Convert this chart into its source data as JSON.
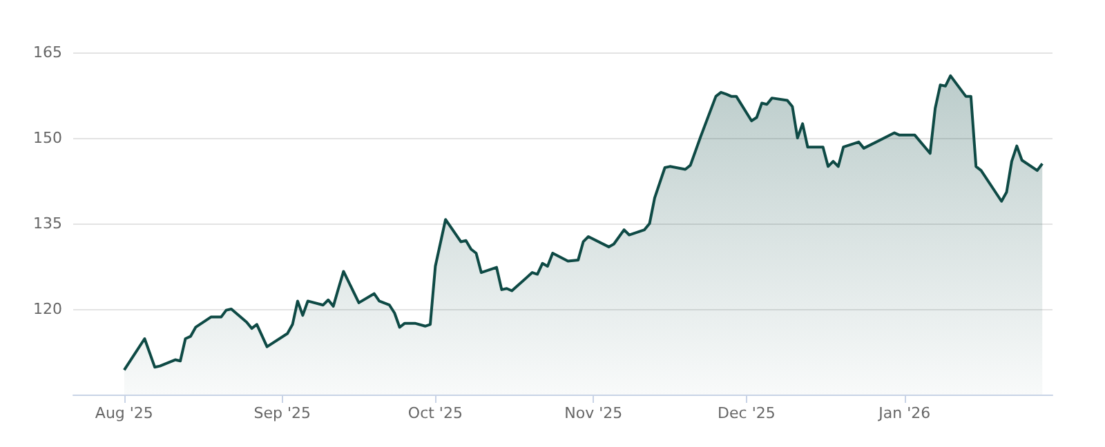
{
  "chart_data": {
    "type": "area",
    "color": "#0e4a45",
    "x": [
      "2025-08-01",
      "2025-08-05",
      "2025-08-07",
      "2025-08-08",
      "2025-08-11",
      "2025-08-12",
      "2025-08-13",
      "2025-08-14",
      "2025-08-15",
      "2025-08-18",
      "2025-08-20",
      "2025-08-21",
      "2025-08-22",
      "2025-08-25",
      "2025-08-26",
      "2025-08-27",
      "2025-08-29",
      "2025-09-02",
      "2025-09-03",
      "2025-09-04",
      "2025-09-05",
      "2025-09-06",
      "2025-09-09",
      "2025-09-10",
      "2025-09-11",
      "2025-09-12",
      "2025-09-13",
      "2025-09-16",
      "2025-09-19",
      "2025-09-20",
      "2025-09-22",
      "2025-09-23",
      "2025-09-24",
      "2025-09-25",
      "2025-09-27",
      "2025-09-29",
      "2025-09-30",
      "2025-10-01",
      "2025-10-03",
      "2025-10-06",
      "2025-10-07",
      "2025-10-08",
      "2025-10-09",
      "2025-10-10",
      "2025-10-13",
      "2025-10-14",
      "2025-10-15",
      "2025-10-16",
      "2025-10-20",
      "2025-10-21",
      "2025-10-22",
      "2025-10-23",
      "2025-10-24",
      "2025-10-27",
      "2025-10-29",
      "2025-10-30",
      "2025-10-31",
      "2025-11-04",
      "2025-11-05",
      "2025-11-07",
      "2025-11-08",
      "2025-11-11",
      "2025-11-12",
      "2025-11-13",
      "2025-11-15",
      "2025-11-16",
      "2025-11-19",
      "2025-11-20",
      "2025-11-22",
      "2025-11-25",
      "2025-11-26",
      "2025-11-27",
      "2025-11-28",
      "2025-11-29",
      "2025-12-02",
      "2025-12-03",
      "2025-12-04",
      "2025-12-05",
      "2025-12-06",
      "2025-12-09",
      "2025-12-10",
      "2025-12-11",
      "2025-12-12",
      "2025-12-13",
      "2025-12-16",
      "2025-12-17",
      "2025-12-18",
      "2025-12-19",
      "2025-12-20",
      "2025-12-23",
      "2025-12-24",
      "2025-12-30",
      "2025-12-31",
      "2026-01-03",
      "2026-01-06",
      "2026-01-07",
      "2026-01-08",
      "2026-01-09",
      "2026-01-10",
      "2026-01-13",
      "2026-01-14",
      "2026-01-15",
      "2026-01-16",
      "2026-01-20",
      "2026-01-21",
      "2026-01-22",
      "2026-01-23",
      "2026-01-24",
      "2026-01-27",
      "2026-01-28"
    ],
    "values": [
      109.3,
      114.8,
      109.8,
      110,
      111.1,
      110.9,
      114.8,
      115.2,
      116.8,
      118.6,
      118.6,
      119.8,
      120,
      117.7,
      116.6,
      117.3,
      113.4,
      115.7,
      117.3,
      121.4,
      118.9,
      121.4,
      120.7,
      121.6,
      120.5,
      123.6,
      126.6,
      121.1,
      122.7,
      121.4,
      120.7,
      119.3,
      116.8,
      117.5,
      117.5,
      117,
      117.3,
      127.5,
      135.7,
      131.8,
      132,
      130.5,
      129.8,
      126.4,
      127.3,
      123.4,
      123.6,
      123.2,
      126.4,
      126.1,
      128,
      127.5,
      129.8,
      128.4,
      128.6,
      131.8,
      132.7,
      130.9,
      131.4,
      133.9,
      133,
      133.9,
      135,
      139.5,
      144.8,
      145,
      144.5,
      145.2,
      150.2,
      157.3,
      158,
      157.7,
      157.3,
      157.3,
      153,
      153.6,
      156.1,
      155.9,
      157,
      156.6,
      155.5,
      150,
      152.5,
      148.4,
      148.4,
      145,
      145.9,
      145,
      148.4,
      149.3,
      148.2,
      150.9,
      150.5,
      150.5,
      147.3,
      155.2,
      159.3,
      159.1,
      160.9,
      157.3,
      157.3,
      145,
      144.3,
      138.9,
      140.5,
      145.9,
      148.6,
      146.1,
      144.3,
      145.5
    ],
    "xlim": [
      "2025-07-22",
      "2026-01-30"
    ],
    "xticks": [
      {
        "value": "2025-08-01",
        "label": "Aug '25"
      },
      {
        "value": "2025-09-01",
        "label": "Sep '25"
      },
      {
        "value": "2025-10-01",
        "label": "Oct '25"
      },
      {
        "value": "2025-11-01",
        "label": "Nov '25"
      },
      {
        "value": "2025-12-01",
        "label": "Dec '25"
      },
      {
        "value": "2026-01-01",
        "label": "Jan '26"
      }
    ],
    "ylim": [
      105,
      165
    ],
    "yticks": [
      120,
      135,
      150,
      165
    ],
    "grid": "y"
  }
}
